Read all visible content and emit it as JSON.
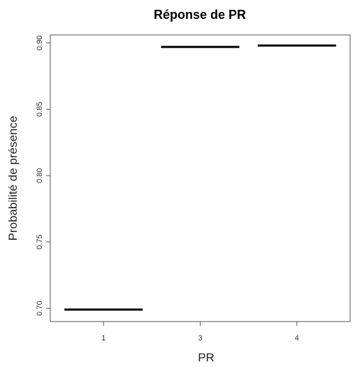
{
  "chart_data": {
    "type": "bar",
    "title": "Réponse de PR",
    "xlabel": "PR",
    "ylabel": "Probabilité de présence",
    "categories": [
      "1",
      "3",
      "4"
    ],
    "values": [
      0.699,
      0.897,
      0.898
    ],
    "ylim": [
      0.69,
      0.906
    ],
    "yticks": [
      "0.70",
      "0.75",
      "0.80",
      "0.85",
      "0.90"
    ],
    "grid": false,
    "legend": "none"
  }
}
